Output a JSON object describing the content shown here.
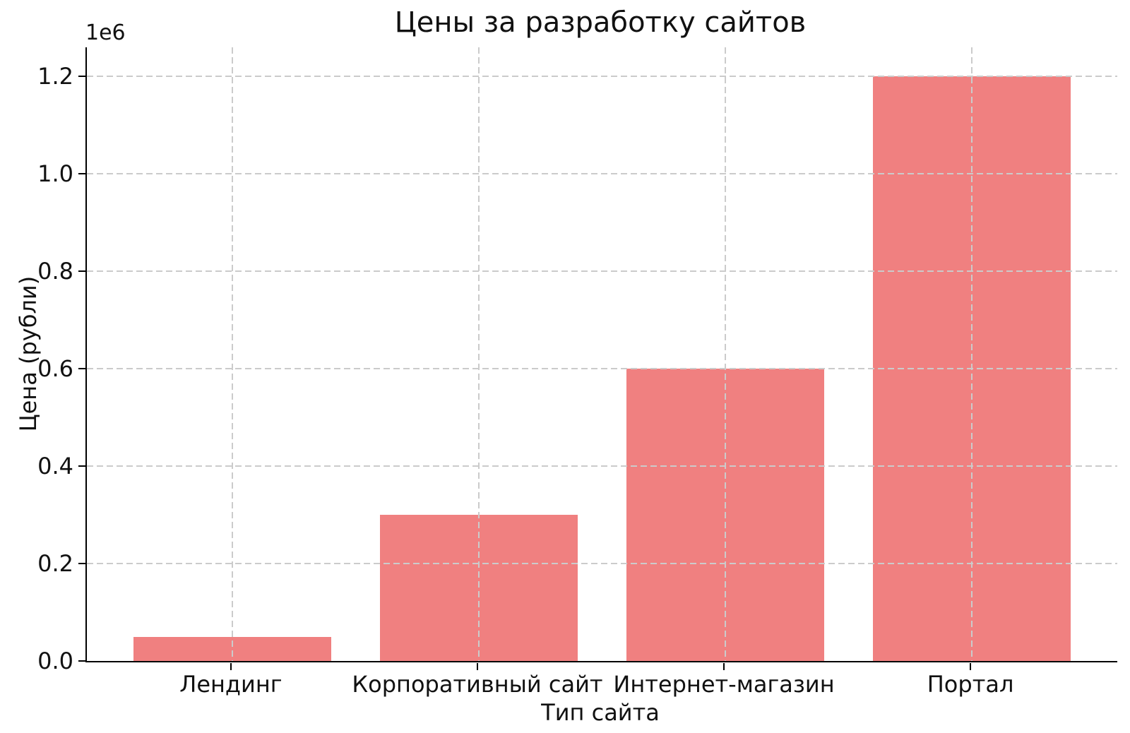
{
  "chart_data": {
    "type": "bar",
    "title": "Цены за разработку сайтов",
    "xlabel": "Тип сайта",
    "ylabel": "Цена (рубли)",
    "y_offset_label": "1e6",
    "categories": [
      "Лендинг",
      "Корпоративный сайт",
      "Интернет-магазин",
      "Портал"
    ],
    "values": [
      50000,
      300000,
      600000,
      1200000
    ],
    "bar_color": "#f08080",
    "bar_width_units": 0.8,
    "x_positions": [
      0,
      1,
      2,
      3
    ],
    "xlim": [
      -0.59,
      3.59
    ],
    "ylim": [
      0,
      1260000
    ],
    "yticks": {
      "values": [
        0,
        200000,
        400000,
        600000,
        800000,
        1000000,
        1200000
      ],
      "labels": [
        "0.0",
        "0.2",
        "0.4",
        "0.6",
        "0.8",
        "1.0",
        "1.2"
      ]
    },
    "grid": {
      "show": true,
      "style": "dashed",
      "color": "#cbcbcb",
      "axes": "both",
      "above_bars": true
    },
    "legend": null,
    "background": "#ffffff",
    "text_color": "#111111",
    "spines": {
      "left": true,
      "bottom": true,
      "top": false,
      "right": false
    }
  }
}
